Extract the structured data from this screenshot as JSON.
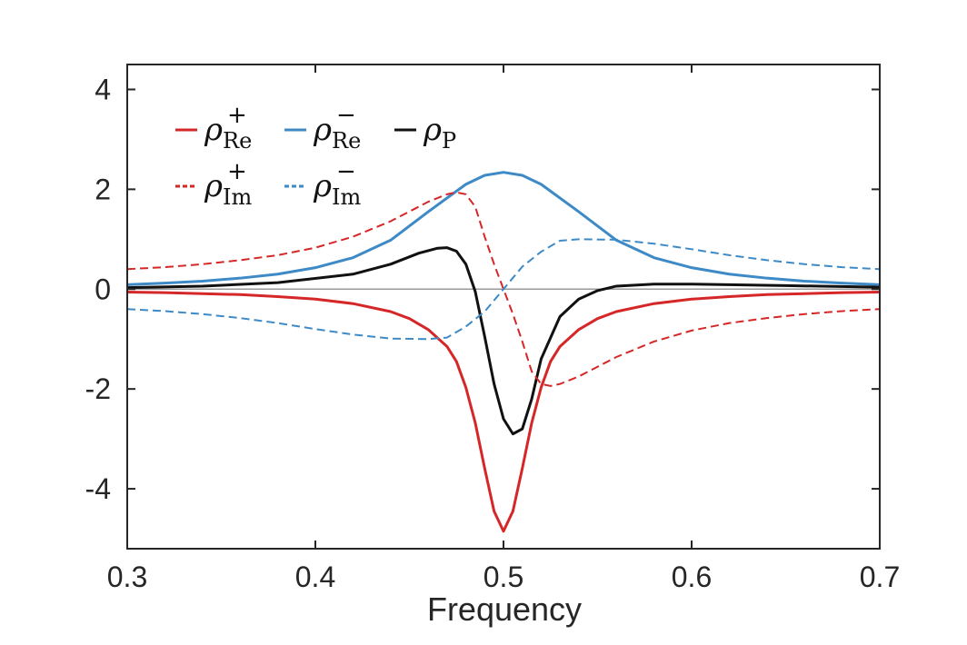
{
  "chart_data": {
    "type": "line",
    "title": "",
    "xlabel": "Frequency",
    "ylabel": "",
    "xlim": [
      0.3,
      0.7
    ],
    "ylim": [
      -5.2,
      4.5
    ],
    "xticks": [
      0.3,
      0.4,
      0.5,
      0.6,
      0.7
    ],
    "yticks": [
      -4,
      -2,
      0,
      2,
      4
    ],
    "xtick_labels": [
      "0.3",
      "0.4",
      "0.5",
      "0.6",
      "0.7"
    ],
    "ytick_labels": [
      "-4",
      "-2",
      "0",
      "2",
      "4"
    ],
    "zero_line": true,
    "grid": false,
    "legend_position": "top-left",
    "series": [
      {
        "name": "rho_Re_plus",
        "legend_symbol": "ρ",
        "legend_sub": "Re",
        "legend_sup": "+",
        "color": "#d62728",
        "style": "solid",
        "x": [
          0.3,
          0.32,
          0.34,
          0.36,
          0.38,
          0.4,
          0.42,
          0.44,
          0.45,
          0.46,
          0.47,
          0.475,
          0.48,
          0.485,
          0.49,
          0.495,
          0.5,
          0.505,
          0.51,
          0.515,
          0.52,
          0.525,
          0.53,
          0.54,
          0.55,
          0.56,
          0.58,
          0.6,
          0.62,
          0.64,
          0.66,
          0.68,
          0.7
        ],
        "y": [
          -0.06,
          -0.07,
          -0.09,
          -0.11,
          -0.15,
          -0.2,
          -0.29,
          -0.45,
          -0.59,
          -0.81,
          -1.15,
          -1.45,
          -1.97,
          -2.68,
          -3.59,
          -4.45,
          -4.85,
          -4.45,
          -3.59,
          -2.68,
          -1.97,
          -1.45,
          -1.15,
          -0.81,
          -0.59,
          -0.45,
          -0.29,
          -0.2,
          -0.15,
          -0.11,
          -0.09,
          -0.07,
          -0.06
        ]
      },
      {
        "name": "rho_Re_minus",
        "legend_symbol": "ρ",
        "legend_sub": "Re",
        "legend_sup": "−",
        "color": "#3d8ac6",
        "style": "solid",
        "x": [
          0.3,
          0.32,
          0.34,
          0.36,
          0.38,
          0.4,
          0.42,
          0.44,
          0.46,
          0.48,
          0.49,
          0.5,
          0.51,
          0.52,
          0.54,
          0.56,
          0.58,
          0.6,
          0.62,
          0.64,
          0.66,
          0.68,
          0.7
        ],
        "y": [
          0.09,
          0.12,
          0.16,
          0.22,
          0.3,
          0.43,
          0.63,
          0.98,
          1.55,
          2.1,
          2.28,
          2.34,
          2.28,
          2.1,
          1.55,
          0.98,
          0.63,
          0.43,
          0.3,
          0.22,
          0.16,
          0.12,
          0.09
        ]
      },
      {
        "name": "rho_P",
        "legend_symbol": "ρ",
        "legend_sub": "P",
        "legend_sup": "",
        "color": "#111111",
        "style": "solid",
        "x": [
          0.3,
          0.34,
          0.38,
          0.42,
          0.44,
          0.455,
          0.465,
          0.47,
          0.475,
          0.48,
          0.485,
          0.49,
          0.495,
          0.5,
          0.505,
          0.51,
          0.515,
          0.52,
          0.53,
          0.54,
          0.55,
          0.56,
          0.58,
          0.6,
          0.65,
          0.7
        ],
        "y": [
          0.03,
          0.06,
          0.13,
          0.3,
          0.5,
          0.72,
          0.82,
          0.83,
          0.76,
          0.5,
          -0.05,
          -0.95,
          -1.9,
          -2.6,
          -2.9,
          -2.8,
          -2.2,
          -1.4,
          -0.55,
          -0.2,
          -0.03,
          0.06,
          0.1,
          0.1,
          0.07,
          0.04
        ]
      },
      {
        "name": "rho_Im_plus",
        "legend_symbol": "ρ",
        "legend_sub": "Im",
        "legend_sup": "+",
        "color": "#d62728",
        "style": "dashed",
        "x": [
          0.3,
          0.32,
          0.34,
          0.36,
          0.38,
          0.4,
          0.42,
          0.44,
          0.46,
          0.47,
          0.475,
          0.48,
          0.485,
          0.49,
          0.495,
          0.5,
          0.505,
          0.51,
          0.515,
          0.52,
          0.525,
          0.53,
          0.54,
          0.56,
          0.58,
          0.6,
          0.62,
          0.64,
          0.66,
          0.68,
          0.7
        ],
        "y": [
          0.4,
          0.44,
          0.5,
          0.58,
          0.68,
          0.83,
          1.05,
          1.36,
          1.75,
          1.9,
          1.94,
          1.9,
          1.65,
          1.05,
          0.5,
          0.0,
          -0.5,
          -1.05,
          -1.65,
          -1.9,
          -1.94,
          -1.9,
          -1.75,
          -1.36,
          -1.05,
          -0.83,
          -0.68,
          -0.58,
          -0.5,
          -0.44,
          -0.4
        ]
      },
      {
        "name": "rho_Im_minus",
        "legend_symbol": "ρ",
        "legend_sub": "Im",
        "legend_sup": "−",
        "color": "#3d8ac6",
        "style": "dashed",
        "x": [
          0.3,
          0.32,
          0.34,
          0.36,
          0.38,
          0.4,
          0.42,
          0.44,
          0.46,
          0.47,
          0.48,
          0.49,
          0.5,
          0.51,
          0.52,
          0.53,
          0.54,
          0.56,
          0.58,
          0.6,
          0.62,
          0.64,
          0.66,
          0.68,
          0.7
        ],
        "y": [
          -0.4,
          -0.44,
          -0.5,
          -0.58,
          -0.68,
          -0.8,
          -0.91,
          -0.99,
          -1.0,
          -0.97,
          -0.75,
          -0.45,
          0.0,
          0.45,
          0.75,
          0.97,
          1.0,
          0.99,
          0.91,
          0.8,
          0.68,
          0.58,
          0.5,
          0.44,
          0.4
        ]
      }
    ]
  }
}
